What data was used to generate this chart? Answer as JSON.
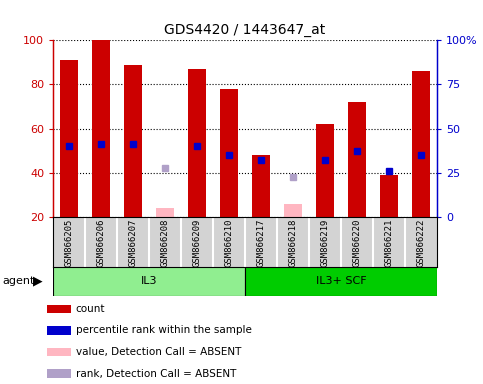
{
  "title": "GDS4420 / 1443647_at",
  "samples": [
    "GSM866205",
    "GSM866206",
    "GSM866207",
    "GSM866208",
    "GSM866209",
    "GSM866210",
    "GSM866217",
    "GSM866218",
    "GSM866219",
    "GSM866220",
    "GSM866221",
    "GSM866222"
  ],
  "groups": [
    {
      "label": "IL3",
      "indices": [
        0,
        1,
        2,
        3,
        4,
        5
      ],
      "color": "#90EE90"
    },
    {
      "label": "IL3+ SCF",
      "indices": [
        6,
        7,
        8,
        9,
        10,
        11
      ],
      "color": "#00CC00"
    }
  ],
  "count_values": [
    91,
    100,
    89,
    0,
    87,
    78,
    48,
    0,
    62,
    72,
    39,
    86
  ],
  "percentile_values": [
    52,
    53,
    53,
    0,
    52,
    48,
    46,
    0,
    46,
    50,
    41,
    48
  ],
  "absent_value": [
    0,
    0,
    0,
    24,
    0,
    0,
    0,
    26,
    0,
    0,
    0,
    0
  ],
  "absent_rank": [
    0,
    0,
    0,
    42,
    0,
    0,
    0,
    38,
    0,
    0,
    0,
    0
  ],
  "detection_call": [
    "P",
    "P",
    "P",
    "A",
    "P",
    "P",
    "P",
    "A",
    "P",
    "P",
    "P",
    "P"
  ],
  "ylim_left": [
    20,
    100
  ],
  "yticks_left": [
    20,
    40,
    60,
    80,
    100
  ],
  "yticks_right_vals": [
    20,
    40,
    60,
    80,
    100
  ],
  "yticks_right_labels": [
    "0",
    "25",
    "50",
    "75",
    "100%"
  ],
  "bar_color": "#CC0000",
  "percentile_color": "#0000CC",
  "absent_bar_color": "#FFB6C1",
  "absent_rank_color": "#B0A0C8",
  "left_axis_color": "#CC0000",
  "right_axis_color": "#0000CC",
  "bar_width": 0.55,
  "legend_items": [
    {
      "label": "count",
      "color": "#CC0000"
    },
    {
      "label": "percentile rank within the sample",
      "color": "#0000CC"
    },
    {
      "label": "value, Detection Call = ABSENT",
      "color": "#FFB6C1"
    },
    {
      "label": "rank, Detection Call = ABSENT",
      "color": "#B0A0C8"
    }
  ]
}
